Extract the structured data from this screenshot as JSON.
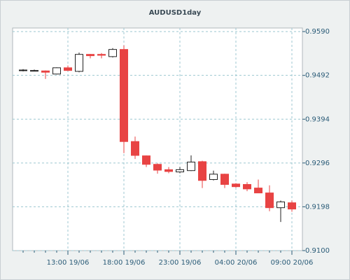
{
  "chart_data": {
    "type": "candlestick",
    "title": "AUDUSD1day",
    "categories": [
      null,
      null,
      null,
      null,
      "13:00 19/06",
      null,
      null,
      null,
      null,
      "18:00 19/06",
      null,
      null,
      null,
      null,
      "23:00 19/06",
      null,
      null,
      null,
      null,
      "04:00 20/06",
      null,
      null,
      null,
      null,
      "09:00 20/06"
    ],
    "open": [
      0.9504,
      0.9503,
      0.9502,
      0.9495,
      0.9509,
      0.9501,
      0.9539,
      0.9539,
      0.9534,
      0.955,
      0.9344,
      0.9312,
      0.9293,
      0.9281,
      0.9276,
      0.9279,
      0.9299,
      0.9259,
      0.9271,
      0.9249,
      0.9248,
      0.924,
      0.9229,
      0.9196,
      0.9207
    ],
    "high": [
      0.9506,
      0.9505,
      0.9503,
      0.951,
      0.9514,
      0.9543,
      0.954,
      0.9542,
      0.9553,
      0.9559,
      0.9355,
      0.9313,
      0.9295,
      0.9287,
      0.9287,
      0.9313,
      0.9301,
      0.9279,
      0.9272,
      0.9251,
      0.9253,
      0.9259,
      0.9246,
      0.9212,
      0.9212
    ],
    "low": [
      0.9501,
      0.9501,
      0.9484,
      0.9494,
      0.9502,
      0.9499,
      0.953,
      0.953,
      0.9532,
      0.9318,
      0.9305,
      0.9287,
      0.9272,
      0.9273,
      0.9273,
      0.9278,
      0.924,
      0.9257,
      0.924,
      0.9241,
      0.9233,
      0.9229,
      0.9188,
      0.9164,
      0.9187
    ],
    "close": [
      0.9504,
      0.9503,
      0.9499,
      0.9509,
      0.9503,
      0.9539,
      0.9536,
      0.9537,
      0.955,
      0.9344,
      0.9313,
      0.9293,
      0.928,
      0.9277,
      0.9281,
      0.9298,
      0.9257,
      0.9271,
      0.9248,
      0.9243,
      0.9238,
      0.9229,
      0.9196,
      0.9209,
      0.9193
    ],
    "up_color": "#ffffff",
    "down_color": "#e84343",
    "ylim": [
      0.91,
      0.9598
    ],
    "yticks": [
      {
        "value": 0.91,
        "label": "0.9100"
      },
      0.9198,
      0.9296,
      0.9394,
      0.9492,
      {
        "value": 0.959,
        "label": "0.9590"
      }
    ],
    "grid": true
  }
}
